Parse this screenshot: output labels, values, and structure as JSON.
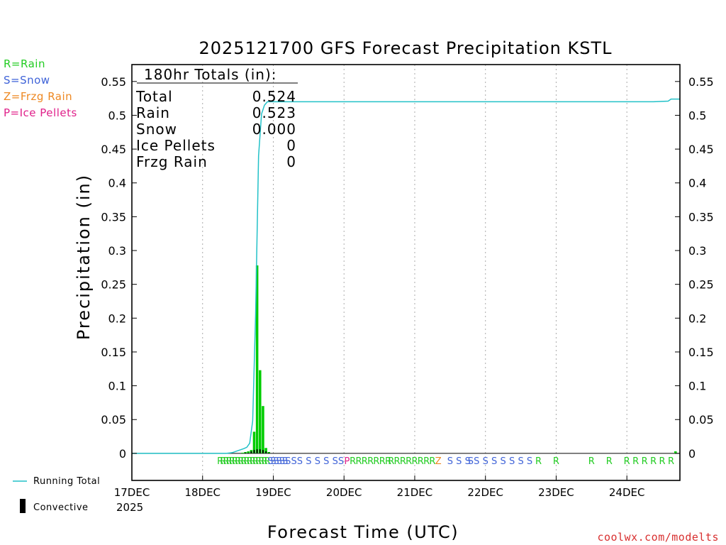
{
  "chart_data": {
    "type": "bar",
    "title": "2025121700 GFS Forecast Precipitation KSTL",
    "xlabel": "Forecast Time (UTC)",
    "ylabel": "Precipitation (in)",
    "ylim": [
      -0.04,
      0.575
    ],
    "y_ticks": [
      0,
      0.05,
      0.1,
      0.15,
      0.2,
      0.25,
      0.3,
      0.35,
      0.4,
      0.45,
      0.5,
      0.55
    ],
    "y_tick_labels": [
      "0",
      "0.05",
      "0.1",
      "0.15",
      "0.2",
      "0.25",
      "0.3",
      "0.35",
      "0.4",
      "0.45",
      "0.5",
      "0.55"
    ],
    "x_range_hours": [
      0,
      186
    ],
    "x_ticks": [
      {
        "hour": 0,
        "label": "17DEC",
        "sublabel": "2025"
      },
      {
        "hour": 24,
        "label": "18DEC"
      },
      {
        "hour": 48,
        "label": "19DEC"
      },
      {
        "hour": 72,
        "label": "20DEC"
      },
      {
        "hour": 96,
        "label": "21DEC"
      },
      {
        "hour": 120,
        "label": "22DEC"
      },
      {
        "hour": 144,
        "label": "23DEC"
      },
      {
        "hour": 168,
        "label": "24DEC"
      }
    ],
    "bars": {
      "hours": [
        37.5,
        38.5,
        39.5,
        40.5,
        41.5,
        42.5,
        43.5,
        44.5,
        45.5,
        46.5,
        184.5
      ],
      "values": [
        0.001,
        0.002,
        0.003,
        0.005,
        0.032,
        0.278,
        0.123,
        0.07,
        0.008,
        0.002,
        0.003
      ],
      "convective": [
        0,
        0.001,
        0.001,
        0.003,
        0.005,
        0.006,
        0.006,
        0.005,
        0.003,
        0.001,
        0
      ]
    },
    "running_total": {
      "hours": [
        0,
        32,
        34,
        36,
        38,
        39,
        40,
        41,
        42,
        43,
        44,
        45,
        46,
        48,
        100,
        177,
        182,
        183,
        186
      ],
      "values": [
        0,
        0,
        0.001,
        0.004,
        0.007,
        0.009,
        0.015,
        0.048,
        0.205,
        0.44,
        0.502,
        0.515,
        0.52,
        0.52,
        0.52,
        0.52,
        0.521,
        0.524,
        0.524
      ]
    },
    "ptype_markers": [
      {
        "hour": 30,
        "type": "R"
      },
      {
        "hour": 31,
        "type": "R"
      },
      {
        "hour": 32,
        "type": "R"
      },
      {
        "hour": 33,
        "type": "R"
      },
      {
        "hour": 34,
        "type": "R"
      },
      {
        "hour": 35,
        "type": "R"
      },
      {
        "hour": 36,
        "type": "R"
      },
      {
        "hour": 37,
        "type": "R"
      },
      {
        "hour": 38,
        "type": "R"
      },
      {
        "hour": 39,
        "type": "R"
      },
      {
        "hour": 40,
        "type": "R"
      },
      {
        "hour": 41,
        "type": "R"
      },
      {
        "hour": 42,
        "type": "R"
      },
      {
        "hour": 43,
        "type": "R"
      },
      {
        "hour": 44,
        "type": "R"
      },
      {
        "hour": 45,
        "type": "R"
      },
      {
        "hour": 46,
        "type": "R"
      },
      {
        "hour": 47,
        "type": "S"
      },
      {
        "hour": 48,
        "type": "S"
      },
      {
        "hour": 49,
        "type": "S"
      },
      {
        "hour": 50,
        "type": "S"
      },
      {
        "hour": 51,
        "type": "S"
      },
      {
        "hour": 52,
        "type": "S"
      },
      {
        "hour": 53,
        "type": "S"
      },
      {
        "hour": 55,
        "type": "S"
      },
      {
        "hour": 57,
        "type": "S"
      },
      {
        "hour": 60,
        "type": "S"
      },
      {
        "hour": 63,
        "type": "S"
      },
      {
        "hour": 66,
        "type": "S"
      },
      {
        "hour": 69,
        "type": "S"
      },
      {
        "hour": 71,
        "type": "S"
      },
      {
        "hour": 73,
        "type": "P"
      },
      {
        "hour": 75,
        "type": "R"
      },
      {
        "hour": 77,
        "type": "R"
      },
      {
        "hour": 79,
        "type": "R"
      },
      {
        "hour": 81,
        "type": "R"
      },
      {
        "hour": 83,
        "type": "R"
      },
      {
        "hour": 85,
        "type": "R"
      },
      {
        "hour": 87,
        "type": "R"
      },
      {
        "hour": 88,
        "type": "R"
      },
      {
        "hour": 90,
        "type": "R"
      },
      {
        "hour": 92,
        "type": "R"
      },
      {
        "hour": 94,
        "type": "R"
      },
      {
        "hour": 96,
        "type": "R"
      },
      {
        "hour": 98,
        "type": "R"
      },
      {
        "hour": 100,
        "type": "R"
      },
      {
        "hour": 102,
        "type": "R"
      },
      {
        "hour": 104,
        "type": "Z"
      },
      {
        "hour": 108,
        "type": "S"
      },
      {
        "hour": 111,
        "type": "S"
      },
      {
        "hour": 114,
        "type": "S"
      },
      {
        "hour": 115,
        "type": "S"
      },
      {
        "hour": 117,
        "type": "S"
      },
      {
        "hour": 120,
        "type": "S"
      },
      {
        "hour": 123,
        "type": "S"
      },
      {
        "hour": 126,
        "type": "S"
      },
      {
        "hour": 129,
        "type": "S"
      },
      {
        "hour": 132,
        "type": "S"
      },
      {
        "hour": 135,
        "type": "S"
      },
      {
        "hour": 138,
        "type": "R"
      },
      {
        "hour": 144,
        "type": "R"
      },
      {
        "hour": 156,
        "type": "R"
      },
      {
        "hour": 162,
        "type": "R"
      },
      {
        "hour": 168,
        "type": "R"
      },
      {
        "hour": 171,
        "type": "R"
      },
      {
        "hour": 174,
        "type": "R"
      },
      {
        "hour": 177,
        "type": "R"
      },
      {
        "hour": 180,
        "type": "R"
      },
      {
        "hour": 183,
        "type": "R"
      }
    ],
    "totals_box": {
      "header": "180hr Totals (in):",
      "rows": [
        {
          "label": "Total",
          "value": "0.524"
        },
        {
          "label": "Rain",
          "value": "0.523"
        },
        {
          "label": "Snow",
          "value": "0.000"
        },
        {
          "label": "Ice Pellets",
          "value": "0"
        },
        {
          "label": "Frzg Rain",
          "value": "0"
        }
      ]
    },
    "series": [
      {
        "name": "Running Total",
        "color": "#22c1c8"
      },
      {
        "name": "Convective",
        "color": "#000000"
      },
      {
        "name": "Precipitation",
        "color": "#00cc00"
      }
    ]
  },
  "ptype_legend": [
    {
      "text": "R=Rain",
      "color": "#22cc22"
    },
    {
      "text": "S=Snow",
      "color": "#3f63d8"
    },
    {
      "text": "Z=Frzg Rain",
      "color": "#ee8822"
    },
    {
      "text": "P=Ice Pellets",
      "color": "#e0208a"
    }
  ],
  "ptype_colors": {
    "R": "#22cc22",
    "S": "#3f63d8",
    "Z": "#ee8822",
    "P": "#e0208a"
  },
  "bottom_legend": {
    "running_total_label": "Running Total",
    "convective_label": "Convective"
  },
  "credit": "coolwx.com/modelts"
}
